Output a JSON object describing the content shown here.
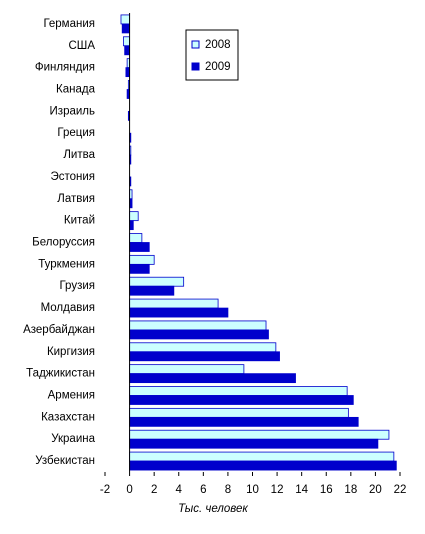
{
  "chart_data": {
    "type": "hbar",
    "x_label": "Тыс. человек",
    "categories": [
      "Германия",
      "США",
      "Финляндия",
      "Канада",
      "Израиль",
      "Греция",
      "Литва",
      "Эстония",
      "Латвия",
      "Китай",
      "Белоруссия",
      "Туркмения",
      "Грузия",
      "Молдавия",
      "Азербайджан",
      "Киргизия",
      "Таджикистан",
      "Армения",
      "Казахстан",
      "Украина",
      "Узбекистан"
    ],
    "series": [
      {
        "name": "2008",
        "color": "#ccffff",
        "values": [
          -0.7,
          -0.5,
          -0.2,
          -0.1,
          0,
          0,
          0.1,
          0,
          0.2,
          0.7,
          1.0,
          2.0,
          4.4,
          7.2,
          11.1,
          11.9,
          9.3,
          17.7,
          17.8,
          21.1,
          21.5
        ]
      },
      {
        "name": "2009",
        "color": "#0000cc",
        "values": [
          -0.6,
          -0.4,
          -0.3,
          -0.2,
          -0.1,
          0.1,
          0.1,
          0.1,
          0.2,
          0.3,
          1.6,
          1.6,
          3.6,
          8.0,
          11.3,
          12.2,
          13.5,
          18.2,
          18.6,
          20.2,
          21.7
        ]
      }
    ],
    "xlim": [
      -2,
      22
    ],
    "xticks": [
      -2,
      0,
      2,
      4,
      6,
      8,
      10,
      12,
      14,
      16,
      18,
      20,
      22
    ],
    "grid": false,
    "legend": "top"
  }
}
